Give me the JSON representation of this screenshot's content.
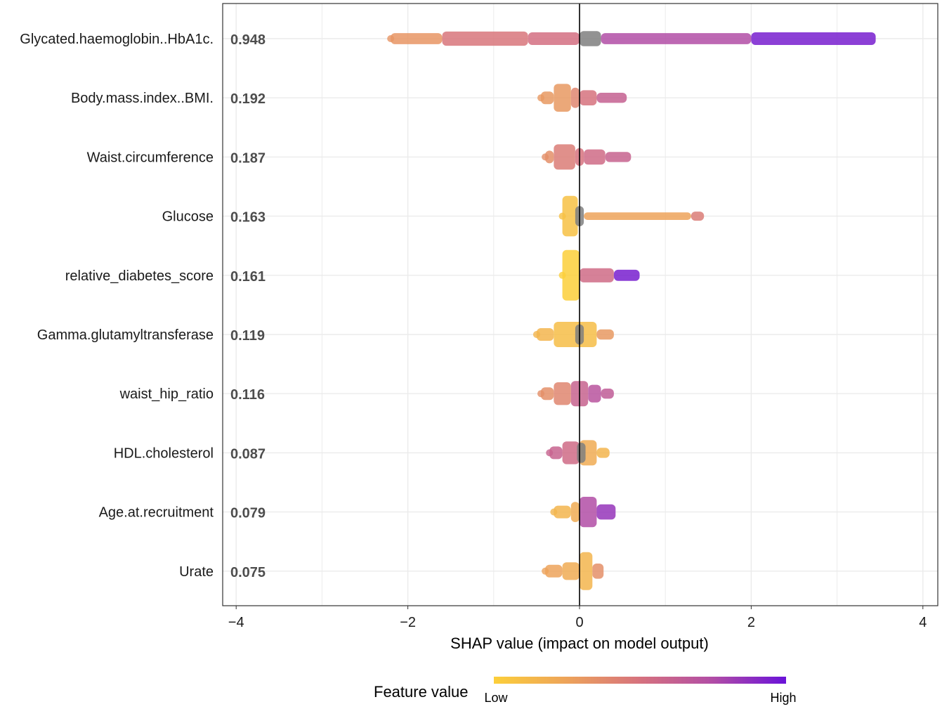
{
  "chart_data": {
    "type": "scatter",
    "subtype": "shap-summary-beeswarm",
    "xlabel": "SHAP value (impact on model output)",
    "xlim": [
      -4.0,
      4.1
    ],
    "xticks": [
      -4,
      -2,
      0,
      2,
      4
    ],
    "xtick_labels": [
      "−4",
      "−2",
      "0",
      "2",
      "4"
    ],
    "grid": true,
    "zero_line": true,
    "legend": {
      "title": "Feature value",
      "low": "Low",
      "high": "High",
      "placement": "bottom",
      "colors": [
        "#FCCF3A",
        "#EDA35A",
        "#D6727E",
        "#B14DA6",
        "#6A12D9"
      ]
    },
    "missing_color": "#7F7F7F",
    "note": "segments: [shap_from, shap_to, relative_density 0-1, feature_value 0(low)-1(high) or null for missing]",
    "features": [
      {
        "name": "Glycated.haemoglobin..HbA1c.",
        "mean_abs_shap": "0.948",
        "segments": [
          [
            -2.2,
            -1.6,
            0.22,
            0.32
          ],
          [
            -1.6,
            -0.6,
            0.28,
            0.48
          ],
          [
            -0.6,
            0,
            0.25,
            0.52
          ],
          [
            0,
            0.25,
            0.3,
            null
          ],
          [
            0.25,
            2.0,
            0.22,
            0.75
          ],
          [
            2.0,
            3.45,
            0.25,
            0.95
          ]
        ]
      },
      {
        "name": "Body.mass.index..BMI.",
        "mean_abs_shap": "0.192",
        "segments": [
          [
            -0.45,
            -0.3,
            0.25,
            0.3
          ],
          [
            -0.3,
            -0.1,
            0.55,
            0.3
          ],
          [
            -0.1,
            0,
            0.4,
            0.4
          ],
          [
            0,
            0.2,
            0.3,
            0.5
          ],
          [
            0.2,
            0.55,
            0.2,
            0.62
          ]
        ]
      },
      {
        "name": "Waist.circumference",
        "mean_abs_shap": "0.187",
        "segments": [
          [
            -0.4,
            -0.3,
            0.25,
            0.35
          ],
          [
            -0.3,
            -0.05,
            0.5,
            0.45
          ],
          [
            -0.05,
            0.05,
            0.35,
            0.5
          ],
          [
            0.05,
            0.3,
            0.3,
            0.55
          ],
          [
            0.3,
            0.6,
            0.2,
            0.6
          ]
        ]
      },
      {
        "name": "Glucose",
        "mean_abs_shap": "0.163",
        "segments": [
          [
            -0.2,
            -0.02,
            0.8,
            0.08
          ],
          [
            -0.05,
            0.05,
            0.4,
            null
          ],
          [
            0.05,
            1.3,
            0.15,
            0.25
          ],
          [
            1.3,
            1.45,
            0.18,
            0.45
          ]
        ]
      },
      {
        "name": "relative_diabetes_score",
        "mean_abs_shap": "0.161",
        "segments": [
          [
            -0.2,
            0,
            1.0,
            0.0
          ],
          [
            0,
            0.4,
            0.28,
            0.55
          ],
          [
            0.4,
            0.7,
            0.22,
            0.95
          ]
        ]
      },
      {
        "name": "Gamma.glutamyltransferase",
        "mean_abs_shap": "0.119",
        "segments": [
          [
            -0.5,
            -0.3,
            0.25,
            0.15
          ],
          [
            -0.3,
            0.2,
            0.5,
            0.1
          ],
          [
            -0.05,
            0.05,
            0.4,
            null
          ],
          [
            0.2,
            0.4,
            0.2,
            0.3
          ]
        ]
      },
      {
        "name": "waist_hip_ratio",
        "mean_abs_shap": "0.116",
        "segments": [
          [
            -0.45,
            -0.3,
            0.25,
            0.35
          ],
          [
            -0.3,
            -0.1,
            0.45,
            0.4
          ],
          [
            -0.1,
            0.1,
            0.5,
            0.6
          ],
          [
            0.1,
            0.25,
            0.35,
            0.7
          ],
          [
            0.25,
            0.4,
            0.2,
            0.65
          ]
        ]
      },
      {
        "name": "HDL.cholesterol",
        "mean_abs_shap": "0.087",
        "segments": [
          [
            -0.35,
            -0.2,
            0.25,
            0.6
          ],
          [
            -0.2,
            0,
            0.45,
            0.55
          ],
          [
            0,
            0.2,
            0.5,
            0.2
          ],
          [
            -0.03,
            0.07,
            0.4,
            null
          ],
          [
            0.2,
            0.35,
            0.2,
            0.15
          ]
        ]
      },
      {
        "name": "Age.at.recruitment",
        "mean_abs_shap": "0.079",
        "segments": [
          [
            -0.3,
            -0.1,
            0.25,
            0.15
          ],
          [
            -0.1,
            0,
            0.4,
            0.2
          ],
          [
            0,
            0.2,
            0.6,
            0.75
          ],
          [
            0.2,
            0.42,
            0.3,
            0.85
          ]
        ]
      },
      {
        "name": "Urate",
        "mean_abs_shap": "0.075",
        "segments": [
          [
            -0.4,
            -0.2,
            0.25,
            0.25
          ],
          [
            -0.2,
            0,
            0.35,
            0.2
          ],
          [
            0,
            0.15,
            0.75,
            0.15
          ],
          [
            0.15,
            0.28,
            0.3,
            0.35
          ]
        ]
      }
    ]
  }
}
